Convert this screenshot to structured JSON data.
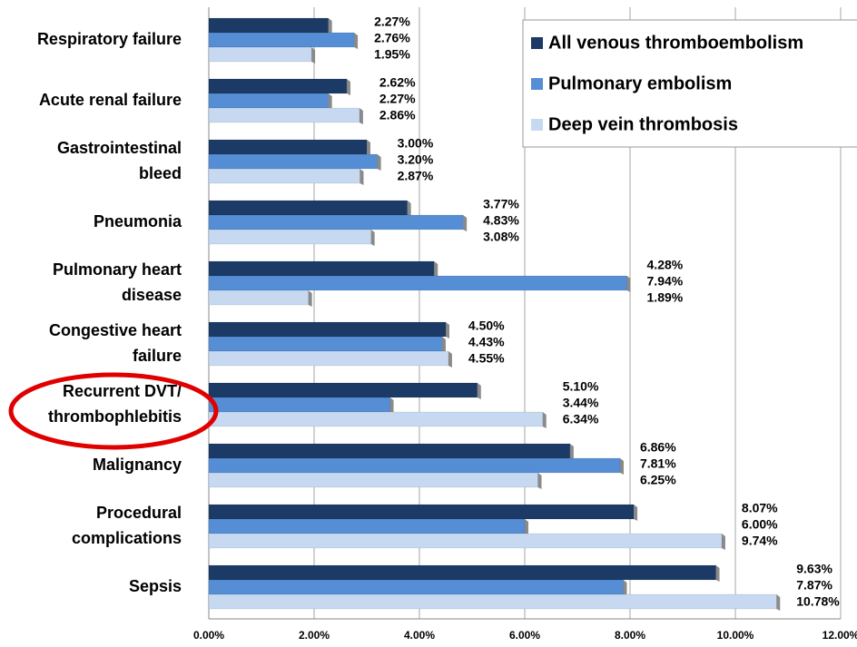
{
  "chart_data": {
    "type": "hbar",
    "categories": [
      "Respiratory failure",
      "Acute renal failure",
      "Gastrointestinal bleed",
      "Pneumonia",
      "Pulmonary heart disease",
      "Congestive heart failure",
      "Recurrent DVT/ thrombophlebitis",
      "Malignancy",
      "Procedural complications",
      "Sepsis"
    ],
    "series": [
      {
        "name": "All venous thromboembolism",
        "color": "#1b3a66",
        "values": [
          2.27,
          2.62,
          3.0,
          3.77,
          4.28,
          4.5,
          5.1,
          6.86,
          8.07,
          9.63
        ],
        "value_labels": [
          "2.27%",
          "2.62%",
          "3.00%",
          "3.77%",
          "4.28%",
          "4.50%",
          "5.10%",
          "6.86%",
          "8.07%",
          "9.63%"
        ]
      },
      {
        "name": "Pulmonary embolism",
        "color": "#558ed5",
        "values": [
          2.76,
          2.27,
          3.2,
          4.83,
          7.94,
          4.43,
          3.44,
          7.81,
          6.0,
          7.87
        ],
        "value_labels": [
          "2.76%",
          "2.27%",
          "3.20%",
          "4.83%",
          "7.94%",
          "4.43%",
          "3.44%",
          "7.81%",
          "6.00%",
          "7.87%"
        ]
      },
      {
        "name": "Deep vein thrombosis",
        "color": "#c6d9f1",
        "values": [
          1.95,
          2.86,
          2.87,
          3.08,
          1.89,
          4.55,
          6.34,
          6.25,
          9.74,
          10.78
        ],
        "value_labels": [
          "1.95%",
          "2.86%",
          "2.87%",
          "3.08%",
          "1.89%",
          "4.55%",
          "6.34%",
          "6.25%",
          "9.74%",
          "10.78%"
        ]
      }
    ],
    "xlim": [
      0,
      12
    ],
    "xticks": [
      {
        "value": 0,
        "label": "0.00%"
      },
      {
        "value": 2,
        "label": "2.00%"
      },
      {
        "value": 4,
        "label": "4.00%"
      },
      {
        "value": 6,
        "label": "6.00%"
      },
      {
        "value": 8,
        "label": "8.00%"
      },
      {
        "value": 10,
        "label": "10.00%"
      },
      {
        "value": 12,
        "label": "12.00%"
      }
    ],
    "grid": true,
    "legend": "top-right"
  }
}
